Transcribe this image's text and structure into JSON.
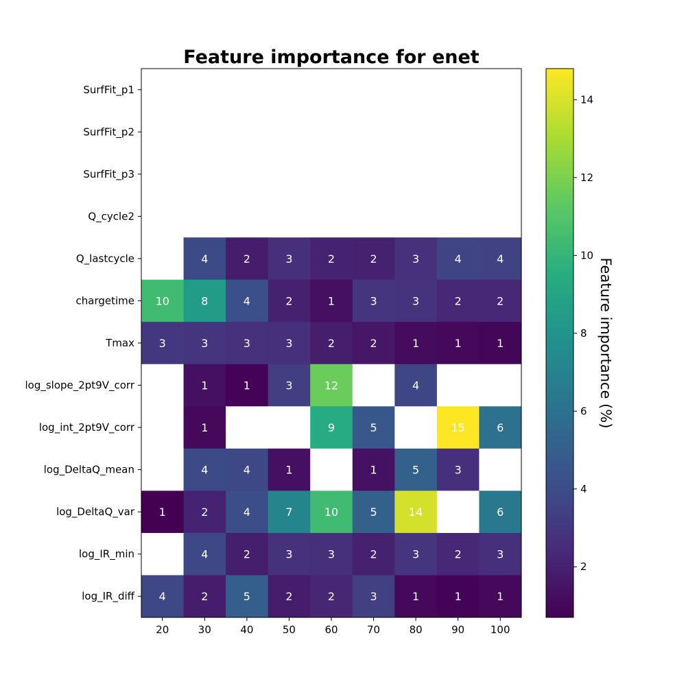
{
  "chart_data": {
    "type": "heatmap",
    "title": "Feature importance for enet",
    "colorbar_label": "Feature importance (%)",
    "x": [
      "20",
      "30",
      "40",
      "50",
      "60",
      "70",
      "80",
      "90",
      "100"
    ],
    "y": [
      "SurfFit_p1",
      "SurfFit_p2",
      "SurfFit_p3",
      "Q_cycle2",
      "Q_lastcycle",
      "chargetime",
      "Tmax",
      "log_slope_2pt9V_corr",
      "log_int_2pt9V_corr",
      "log_DeltaQ_mean",
      "log_DeltaQ_var",
      "log_IR_min",
      "log_IR_diff"
    ],
    "values": [
      [
        null,
        null,
        null,
        null,
        null,
        null,
        null,
        null,
        null
      ],
      [
        null,
        null,
        null,
        null,
        null,
        null,
        null,
        null,
        null
      ],
      [
        null,
        null,
        null,
        null,
        null,
        null,
        null,
        null,
        null
      ],
      [
        null,
        null,
        null,
        null,
        null,
        null,
        null,
        null,
        null
      ],
      [
        null,
        3.9,
        1.8,
        2.6,
        2.1,
        2.0,
        2.7,
        3.6,
        3.5
      ],
      [
        10.4,
        8.4,
        4.2,
        2.0,
        1.3,
        2.9,
        2.8,
        2.3,
        2.3
      ],
      [
        3.0,
        2.9,
        2.7,
        2.6,
        1.9,
        1.6,
        1.1,
        1.0,
        0.9
      ],
      [
        null,
        1.3,
        0.8,
        3.3,
        11.6,
        null,
        3.7,
        null,
        null
      ],
      [
        null,
        1.0,
        null,
        null,
        9.4,
        4.6,
        null,
        14.8,
        6.0
      ],
      [
        null,
        3.9,
        3.8,
        1.3,
        null,
        1.4,
        5.1,
        2.6,
        null
      ],
      [
        0.7,
        2.1,
        4.1,
        7.1,
        10.4,
        5.1,
        13.9,
        null,
        6.4
      ],
      [
        null,
        3.8,
        1.9,
        2.7,
        2.6,
        2.0,
        2.9,
        2.3,
        2.6
      ],
      [
        3.8,
        1.8,
        5.0,
        1.8,
        2.2,
        3.4,
        1.0,
        0.8,
        1.0
      ]
    ],
    "labels": [
      [
        "",
        "",
        "",
        "",
        "",
        "",
        "",
        "",
        ""
      ],
      [
        "",
        "",
        "",
        "",
        "",
        "",
        "",
        "",
        ""
      ],
      [
        "",
        "",
        "",
        "",
        "",
        "",
        "",
        "",
        ""
      ],
      [
        "",
        "",
        "",
        "",
        "",
        "",
        "",
        "",
        ""
      ],
      [
        "",
        "4",
        "2",
        "3",
        "2",
        "2",
        "3",
        "4",
        "4"
      ],
      [
        "10",
        "8",
        "4",
        "2",
        "1",
        "3",
        "3",
        "2",
        "2"
      ],
      [
        "3",
        "3",
        "3",
        "3",
        "2",
        "2",
        "1",
        "1",
        "1"
      ],
      [
        "",
        "1",
        "1",
        "3",
        "12",
        "",
        "4",
        "",
        ""
      ],
      [
        "",
        "1",
        "",
        "",
        "9",
        "5",
        "",
        "15",
        "6"
      ],
      [
        "",
        "4",
        "4",
        "1",
        "",
        "1",
        "5",
        "3",
        ""
      ],
      [
        "1",
        "2",
        "4",
        "7",
        "10",
        "5",
        "14",
        "",
        "6"
      ],
      [
        "",
        "4",
        "2",
        "3",
        "3",
        "2",
        "3",
        "2",
        "3"
      ],
      [
        "4",
        "2",
        "5",
        "2",
        "2",
        "3",
        "1",
        "1",
        "1"
      ]
    ],
    "color_range": [
      0.7,
      14.8
    ],
    "colorbar_ticks": [
      "2",
      "4",
      "6",
      "8",
      "10",
      "12",
      "14"
    ],
    "colormap": "viridis",
    "missing_color": "#ffffff",
    "grid": false
  }
}
